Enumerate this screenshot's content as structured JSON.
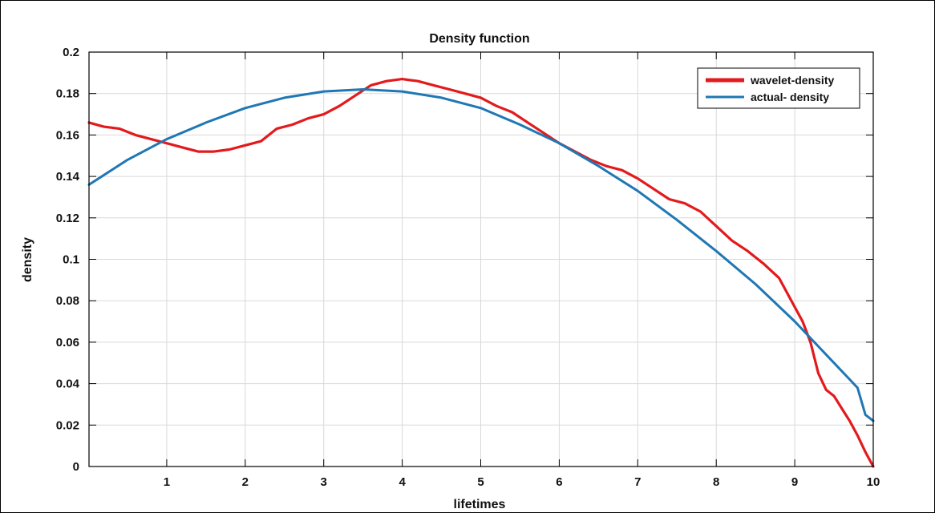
{
  "chart_data": {
    "type": "line",
    "title": "Density function",
    "xlabel": "lifetimes",
    "ylabel": "density",
    "xlim": [
      0.01,
      10
    ],
    "ylim": [
      0,
      0.2
    ],
    "xticks": [
      1,
      2,
      3,
      4,
      5,
      6,
      7,
      8,
      9,
      10
    ],
    "xtick_labels": [
      "1",
      "2",
      "3",
      "4",
      "5",
      "6",
      "7",
      "8",
      "9",
      "10"
    ],
    "yticks": [
      0,
      0.02,
      0.04,
      0.06,
      0.08,
      0.1,
      0.12,
      0.14,
      0.16,
      0.18,
      0.2
    ],
    "ytick_labels": [
      "0",
      "0.02",
      "0.04",
      "0.06",
      "0.08",
      "0.1",
      "0.12",
      "0.14",
      "0.16",
      "0.18",
      "0.2"
    ],
    "grid": true,
    "legend_position": "top-right",
    "series": [
      {
        "name": "wavelet-density",
        "color": "#e31a1c",
        "x": [
          0.01,
          0.2,
          0.4,
          0.6,
          0.8,
          1.0,
          1.2,
          1.4,
          1.6,
          1.8,
          2.0,
          2.2,
          2.4,
          2.6,
          2.8,
          3.0,
          3.2,
          3.4,
          3.6,
          3.8,
          4.0,
          4.2,
          4.4,
          4.6,
          4.8,
          5.0,
          5.2,
          5.4,
          5.6,
          5.8,
          6.0,
          6.2,
          6.4,
          6.6,
          6.8,
          7.0,
          7.2,
          7.4,
          7.6,
          7.8,
          8.0,
          8.2,
          8.4,
          8.6,
          8.8,
          9.0,
          9.1,
          9.2,
          9.3,
          9.4,
          9.5,
          9.6,
          9.7,
          9.8,
          9.9,
          10.0
        ],
        "y": [
          0.166,
          0.164,
          0.163,
          0.16,
          0.158,
          0.156,
          0.154,
          0.152,
          0.152,
          0.153,
          0.155,
          0.157,
          0.163,
          0.165,
          0.168,
          0.17,
          0.174,
          0.179,
          0.184,
          0.186,
          0.187,
          0.186,
          0.184,
          0.182,
          0.18,
          0.178,
          0.174,
          0.171,
          0.166,
          0.161,
          0.156,
          0.152,
          0.148,
          0.145,
          0.143,
          0.139,
          0.134,
          0.129,
          0.127,
          0.123,
          0.116,
          0.109,
          0.104,
          0.098,
          0.091,
          0.077,
          0.07,
          0.06,
          0.045,
          0.037,
          0.034,
          0.028,
          0.022,
          0.015,
          0.007,
          0.0
        ]
      },
      {
        "name": "actual- density",
        "color": "#1f77b4",
        "x": [
          0.01,
          0.5,
          1.0,
          1.5,
          2.0,
          2.5,
          3.0,
          3.5,
          4.0,
          4.5,
          5.0,
          5.5,
          6.0,
          6.5,
          7.0,
          7.5,
          8.0,
          8.5,
          9.0,
          9.3,
          9.5,
          9.7,
          9.8,
          9.9,
          10.0
        ],
        "y": [
          0.136,
          0.148,
          0.158,
          0.166,
          0.173,
          0.178,
          0.181,
          0.182,
          0.181,
          0.178,
          0.173,
          0.165,
          0.156,
          0.145,
          0.133,
          0.119,
          0.104,
          0.088,
          0.07,
          0.058,
          0.05,
          0.042,
          0.038,
          0.025,
          0.022
        ]
      }
    ]
  }
}
